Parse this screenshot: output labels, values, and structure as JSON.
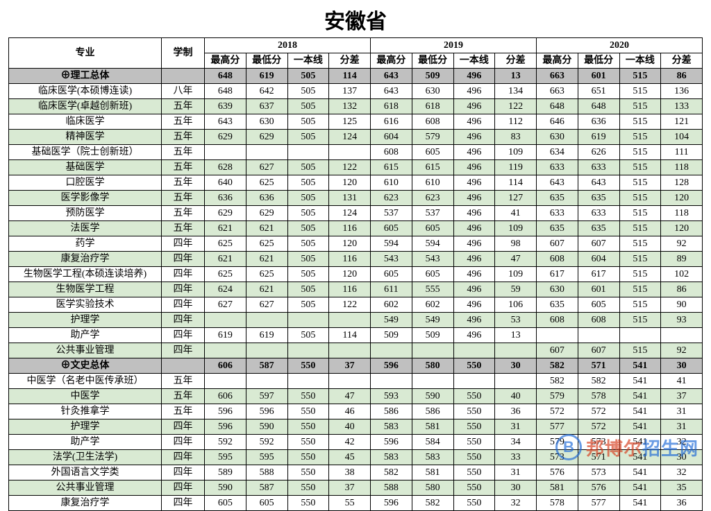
{
  "title": "安徽省",
  "header": {
    "major": "专业",
    "duration": "学制",
    "years": [
      "2018",
      "2019",
      "2020"
    ],
    "sub": [
      "最高分",
      "最低分",
      "一本线",
      "分差"
    ]
  },
  "totals": [
    {
      "name": "⊕理工总体",
      "dur": "",
      "y18": [
        "648",
        "619",
        "505",
        "114"
      ],
      "y19": [
        "643",
        "509",
        "496",
        "13"
      ],
      "y20": [
        "663",
        "601",
        "515",
        "86"
      ]
    },
    {
      "name": "⊕文史总体",
      "dur": "",
      "y18": [
        "606",
        "587",
        "550",
        "37"
      ],
      "y19": [
        "596",
        "580",
        "550",
        "30"
      ],
      "y20": [
        "582",
        "571",
        "541",
        "30"
      ]
    }
  ],
  "science": [
    {
      "name": "临床医学(本硕博连读)",
      "dur": "八年",
      "y18": [
        "648",
        "642",
        "505",
        "137"
      ],
      "y19": [
        "643",
        "630",
        "496",
        "134"
      ],
      "y20": [
        "663",
        "651",
        "515",
        "136"
      ],
      "alt": false
    },
    {
      "name": "临床医学(卓越创新班)",
      "dur": "五年",
      "y18": [
        "639",
        "637",
        "505",
        "132"
      ],
      "y19": [
        "618",
        "618",
        "496",
        "122"
      ],
      "y20": [
        "648",
        "648",
        "515",
        "133"
      ],
      "alt": true
    },
    {
      "name": "临床医学",
      "dur": "五年",
      "y18": [
        "643",
        "630",
        "505",
        "125"
      ],
      "y19": [
        "616",
        "608",
        "496",
        "112"
      ],
      "y20": [
        "646",
        "636",
        "515",
        "121"
      ],
      "alt": false
    },
    {
      "name": "精神医学",
      "dur": "五年",
      "y18": [
        "629",
        "629",
        "505",
        "124"
      ],
      "y19": [
        "604",
        "579",
        "496",
        "83"
      ],
      "y20": [
        "630",
        "619",
        "515",
        "104"
      ],
      "alt": true
    },
    {
      "name": "基础医学（院士创新班）",
      "dur": "五年",
      "y18": [
        "",
        "",
        "",
        ""
      ],
      "y19": [
        "608",
        "605",
        "496",
        "109"
      ],
      "y20": [
        "634",
        "626",
        "515",
        "111"
      ],
      "alt": false
    },
    {
      "name": "基础医学",
      "dur": "五年",
      "y18": [
        "628",
        "627",
        "505",
        "122"
      ],
      "y19": [
        "615",
        "615",
        "496",
        "119"
      ],
      "y20": [
        "633",
        "633",
        "515",
        "118"
      ],
      "alt": true
    },
    {
      "name": "口腔医学",
      "dur": "五年",
      "y18": [
        "640",
        "625",
        "505",
        "120"
      ],
      "y19": [
        "610",
        "610",
        "496",
        "114"
      ],
      "y20": [
        "643",
        "643",
        "515",
        "128"
      ],
      "alt": false
    },
    {
      "name": "医学影像学",
      "dur": "五年",
      "y18": [
        "636",
        "636",
        "505",
        "131"
      ],
      "y19": [
        "623",
        "623",
        "496",
        "127"
      ],
      "y20": [
        "635",
        "635",
        "515",
        "120"
      ],
      "alt": true
    },
    {
      "name": "预防医学",
      "dur": "五年",
      "y18": [
        "629",
        "629",
        "505",
        "124"
      ],
      "y19": [
        "537",
        "537",
        "496",
        "41"
      ],
      "y20": [
        "633",
        "633",
        "515",
        "118"
      ],
      "alt": false
    },
    {
      "name": "法医学",
      "dur": "五年",
      "y18": [
        "621",
        "621",
        "505",
        "116"
      ],
      "y19": [
        "605",
        "605",
        "496",
        "109"
      ],
      "y20": [
        "635",
        "635",
        "515",
        "120"
      ],
      "alt": true
    },
    {
      "name": "药学",
      "dur": "四年",
      "y18": [
        "625",
        "625",
        "505",
        "120"
      ],
      "y19": [
        "594",
        "594",
        "496",
        "98"
      ],
      "y20": [
        "607",
        "607",
        "515",
        "92"
      ],
      "alt": false
    },
    {
      "name": "康复治疗学",
      "dur": "四年",
      "y18": [
        "621",
        "621",
        "505",
        "116"
      ],
      "y19": [
        "543",
        "543",
        "496",
        "47"
      ],
      "y20": [
        "608",
        "604",
        "515",
        "89"
      ],
      "alt": true
    },
    {
      "name": "生物医学工程(本硕连读培养)",
      "dur": "四年",
      "y18": [
        "625",
        "625",
        "505",
        "120"
      ],
      "y19": [
        "605",
        "605",
        "496",
        "109"
      ],
      "y20": [
        "617",
        "617",
        "515",
        "102"
      ],
      "alt": false
    },
    {
      "name": "生物医学工程",
      "dur": "四年",
      "y18": [
        "624",
        "621",
        "505",
        "116"
      ],
      "y19": [
        "611",
        "555",
        "496",
        "59"
      ],
      "y20": [
        "630",
        "601",
        "515",
        "86"
      ],
      "alt": true
    },
    {
      "name": "医学实验技术",
      "dur": "四年",
      "y18": [
        "627",
        "627",
        "505",
        "122"
      ],
      "y19": [
        "602",
        "602",
        "496",
        "106"
      ],
      "y20": [
        "635",
        "605",
        "515",
        "90"
      ],
      "alt": false
    },
    {
      "name": "护理学",
      "dur": "四年",
      "y18": [
        "",
        "",
        "",
        ""
      ],
      "y19": [
        "549",
        "549",
        "496",
        "53"
      ],
      "y20": [
        "608",
        "608",
        "515",
        "93"
      ],
      "alt": true
    },
    {
      "name": "助产学",
      "dur": "四年",
      "y18": [
        "619",
        "619",
        "505",
        "114"
      ],
      "y19": [
        "509",
        "509",
        "496",
        "13"
      ],
      "y20": [
        "",
        "",
        "",
        ""
      ],
      "alt": false
    },
    {
      "name": "公共事业管理",
      "dur": "四年",
      "y18": [
        "",
        "",
        "",
        ""
      ],
      "y19": [
        "",
        "",
        "",
        ""
      ],
      "y20": [
        "607",
        "607",
        "515",
        "92"
      ],
      "alt": true
    }
  ],
  "arts": [
    {
      "name": "中医学（名老中医传承班）",
      "dur": "五年",
      "y18": [
        "",
        "",
        "",
        ""
      ],
      "y19": [
        "",
        "",
        "",
        ""
      ],
      "y20": [
        "582",
        "582",
        "541",
        "41"
      ],
      "alt": false
    },
    {
      "name": "中医学",
      "dur": "五年",
      "y18": [
        "606",
        "597",
        "550",
        "47"
      ],
      "y19": [
        "593",
        "590",
        "550",
        "40"
      ],
      "y20": [
        "579",
        "578",
        "541",
        "37"
      ],
      "alt": true
    },
    {
      "name": "针灸推拿学",
      "dur": "五年",
      "y18": [
        "596",
        "596",
        "550",
        "46"
      ],
      "y19": [
        "586",
        "586",
        "550",
        "36"
      ],
      "y20": [
        "572",
        "572",
        "541",
        "31"
      ],
      "alt": false
    },
    {
      "name": "护理学",
      "dur": "四年",
      "y18": [
        "596",
        "590",
        "550",
        "40"
      ],
      "y19": [
        "583",
        "581",
        "550",
        "31"
      ],
      "y20": [
        "577",
        "572",
        "541",
        "31"
      ],
      "alt": true
    },
    {
      "name": "助产学",
      "dur": "四年",
      "y18": [
        "592",
        "592",
        "550",
        "42"
      ],
      "y19": [
        "596",
        "584",
        "550",
        "34"
      ],
      "y20": [
        "579",
        "573",
        "541",
        "32"
      ],
      "alt": false
    },
    {
      "name": "法学(卫生法学)",
      "dur": "四年",
      "y18": [
        "595",
        "595",
        "550",
        "45"
      ],
      "y19": [
        "583",
        "583",
        "550",
        "33"
      ],
      "y20": [
        "573",
        "571",
        "541",
        "30"
      ],
      "alt": true
    },
    {
      "name": "外国语言文学类",
      "dur": "四年",
      "y18": [
        "589",
        "588",
        "550",
        "38"
      ],
      "y19": [
        "582",
        "581",
        "550",
        "31"
      ],
      "y20": [
        "576",
        "573",
        "541",
        "32"
      ],
      "alt": false
    },
    {
      "name": "公共事业管理",
      "dur": "四年",
      "y18": [
        "590",
        "587",
        "550",
        "37"
      ],
      "y19": [
        "588",
        "580",
        "550",
        "30"
      ],
      "y20": [
        "581",
        "576",
        "541",
        "35"
      ],
      "alt": true
    },
    {
      "name": "康复治疗学",
      "dur": "四年",
      "y18": [
        "605",
        "605",
        "550",
        "55"
      ],
      "y19": [
        "596",
        "582",
        "550",
        "32"
      ],
      "y20": [
        "578",
        "577",
        "541",
        "36"
      ],
      "alt": false
    }
  ],
  "watermark": {
    "logo": "B",
    "text1": "邦博尔",
    "text2": "招生网"
  },
  "colors": {
    "alt": "#d9ead3",
    "total": "#c0c0c0",
    "border": "#000000",
    "wm_blue": "#1a66d6",
    "wm_red": "#d63a1a"
  }
}
